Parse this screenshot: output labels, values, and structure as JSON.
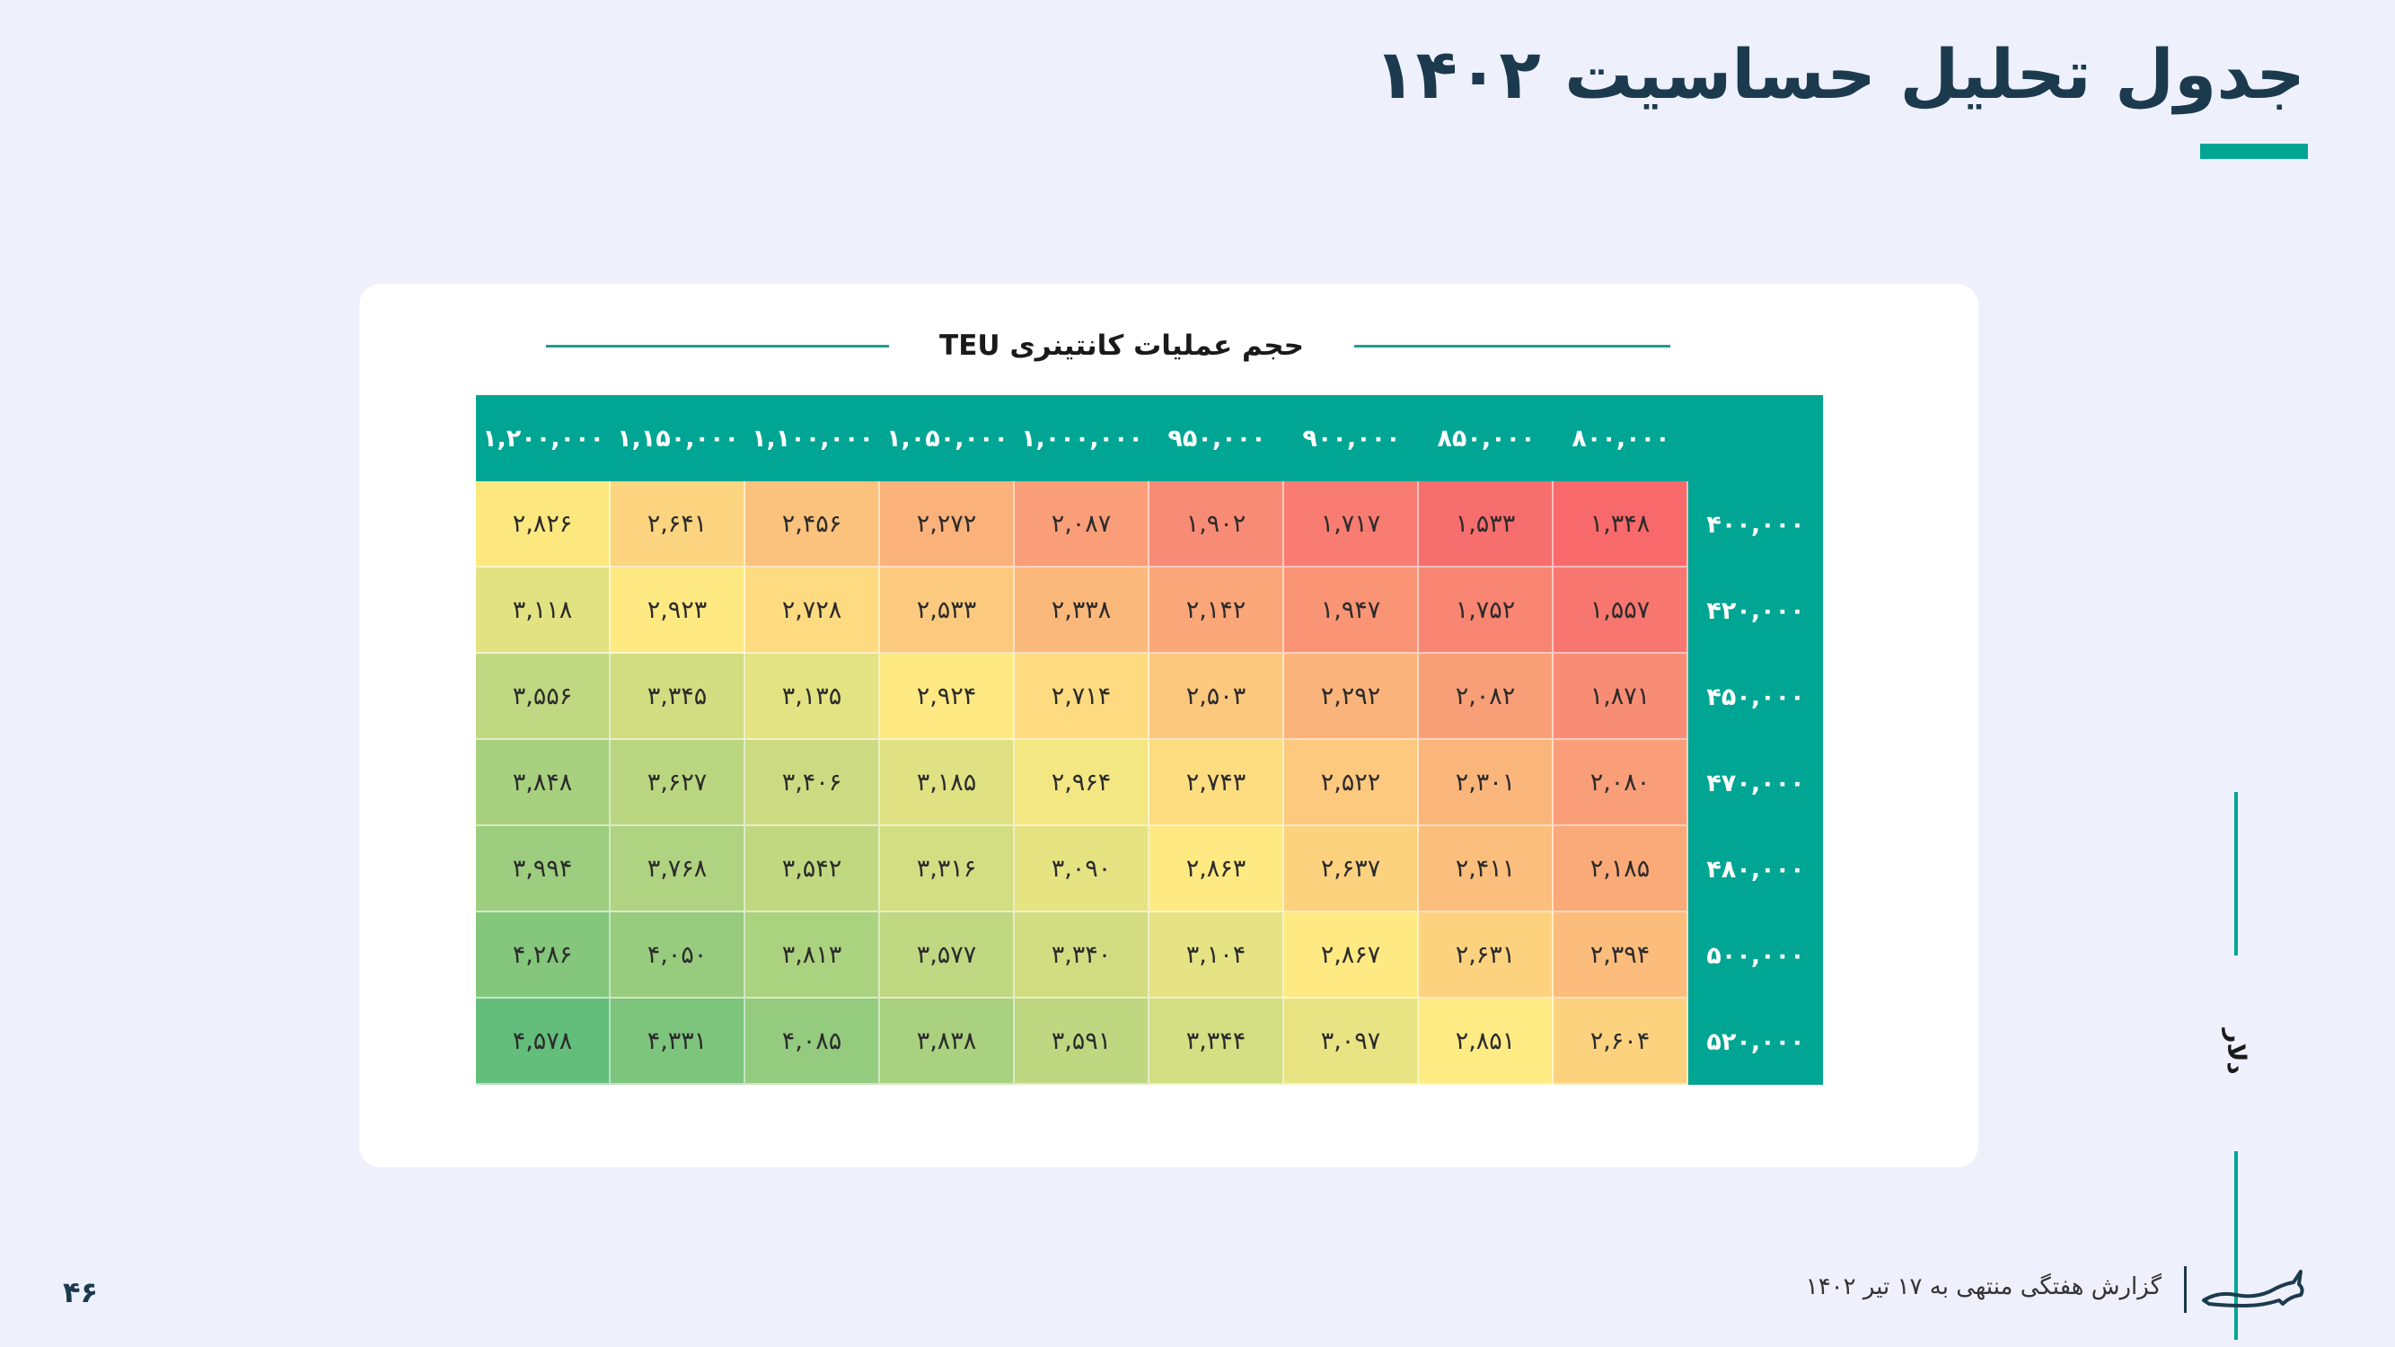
{
  "title": "جدول تحلیل حساسیت ۱۴۰۲",
  "table": {
    "header_label": "حجم عملیات کانتینری TEU",
    "row_axis_label": "دلار",
    "columns": [
      "۱,۲۰۰,۰۰۰",
      "۱,۱۵۰,۰۰۰",
      "۱,۱۰۰,۰۰۰",
      "۱,۰۵۰,۰۰۰",
      "۱,۰۰۰,۰۰۰",
      "۹۵۰,۰۰۰",
      "۹۰۰,۰۰۰",
      "۸۵۰,۰۰۰",
      "۸۰۰,۰۰۰"
    ],
    "rows": [
      {
        "label": "۴۰۰,۰۰۰",
        "cells": [
          "۲,۸۲۶",
          "۲,۶۴۱",
          "۲,۴۵۶",
          "۲,۲۷۲",
          "۲,۰۸۷",
          "۱,۹۰۲",
          "۱,۷۱۷",
          "۱,۵۳۳",
          "۱,۳۴۸"
        ],
        "colors": [
          "#fde880",
          "#fdd47f",
          "#fbc27d",
          "#fab17a",
          "#f99e78",
          "#f88b75",
          "#f87c72",
          "#f76e6f",
          "#f8696b"
        ]
      },
      {
        "label": "۴۲۰,۰۰۰",
        "cells": [
          "۳,۱۱۸",
          "۲,۹۲۳",
          "۲,۷۲۸",
          "۲,۵۳۳",
          "۲,۳۳۸",
          "۲,۱۴۲",
          "۱,۹۴۷",
          "۱,۷۵۲",
          "۱,۵۵۷"
        ],
        "colors": [
          "#e2e283",
          "#fee983",
          "#fedb80",
          "#fcca7e",
          "#fbb87b",
          "#faa678",
          "#f99475",
          "#f88572",
          "#f7766f"
        ]
      },
      {
        "label": "۴۵۰,۰۰۰",
        "cells": [
          "۳,۵۵۶",
          "۳,۳۴۵",
          "۳,۱۳۵",
          "۲,۹۲۴",
          "۲,۷۱۴",
          "۲,۵۰۳",
          "۲,۲۹۲",
          "۲,۰۸۲",
          "۱,۸۷۱"
        ],
        "colors": [
          "#c0d881",
          "#d2dd82",
          "#e4e383",
          "#fee983",
          "#fedb80",
          "#fcc87e",
          "#fab47b",
          "#f99f78",
          "#f88d75"
        ]
      },
      {
        "label": "۴۷۰,۰۰۰",
        "cells": [
          "۳,۸۴۸",
          "۳,۶۲۷",
          "۳,۴۰۶",
          "۳,۱۸۵",
          "۲,۹۶۴",
          "۲,۷۴۳",
          "۲,۵۲۲",
          "۲,۳۰۱",
          "۲,۰۸۰"
        ],
        "colors": [
          "#a8d17f",
          "#bbd681",
          "#ccdb82",
          "#dfe183",
          "#f3e783",
          "#fedd80",
          "#fcc97e",
          "#fab57b",
          "#f99e78"
        ]
      },
      {
        "label": "۴۸۰,۰۰۰",
        "cells": [
          "۳,۹۹۴",
          "۳,۷۶۸",
          "۳,۵۴۲",
          "۳,۳۱۶",
          "۳,۰۹۰",
          "۲,۸۶۳",
          "۲,۶۳۷",
          "۲,۴۱۱",
          "۲,۱۸۵"
        ],
        "colors": [
          "#9dcd7e",
          "#afd380",
          "#c1d881",
          "#d3dd82",
          "#e6e383",
          "#fee983",
          "#fdd27f",
          "#fbbe7c",
          "#faa978"
        ]
      },
      {
        "label": "۵۰۰,۰۰۰",
        "cells": [
          "۴,۲۸۶",
          "۴,۰۵۰",
          "۳,۸۱۳",
          "۳,۵۷۷",
          "۳,۳۴۰",
          "۳,۱۰۴",
          "۲,۸۶۷",
          "۲,۶۳۱",
          "۲,۳۹۴"
        ],
        "colors": [
          "#83c67c",
          "#97cb7e",
          "#abd27f",
          "#bfd881",
          "#d2dd82",
          "#e5e383",
          "#fee983",
          "#fdd27f",
          "#fbbc7c"
        ]
      },
      {
        "label": "۵۲۰,۰۰۰",
        "cells": [
          "۴,۵۷۸",
          "۴,۳۳۱",
          "۴,۰۸۵",
          "۳,۸۳۸",
          "۳,۵۹۱",
          "۳,۳۴۴",
          "۳,۰۹۷",
          "۲,۸۵۱",
          "۲,۶۰۴"
        ],
        "colors": [
          "#63be7b",
          "#7dc47c",
          "#94cb7e",
          "#a9d17f",
          "#bfd781",
          "#d4de82",
          "#e9e483",
          "#feeb84",
          "#fdd27f"
        ]
      }
    ]
  },
  "footer": {
    "page_number": "۴۶",
    "report_text": "گزارش هفتگی منتهی به ۱۷ تیر ۱۴۰۲"
  },
  "colors": {
    "accent": "#00a594",
    "title": "#1c3a4e",
    "background": "#eef0fc"
  }
}
